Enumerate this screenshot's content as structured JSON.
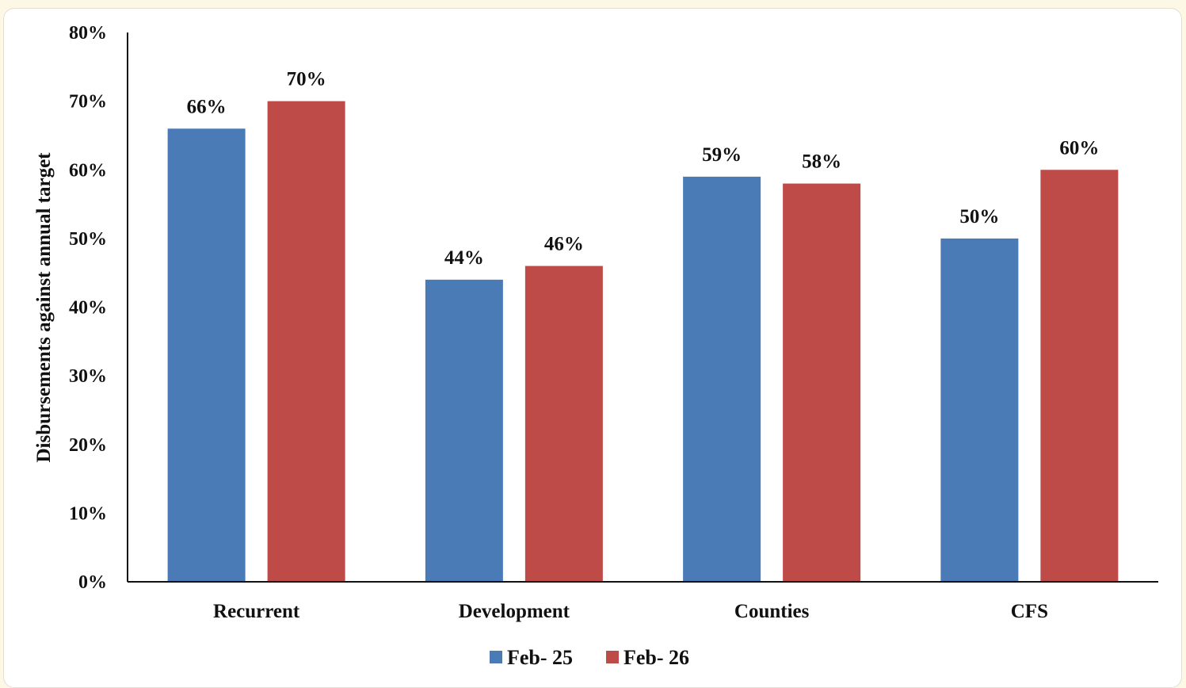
{
  "chart_data": {
    "type": "bar",
    "title": "",
    "xlabel": "",
    "ylabel": "Disbursements against annual target",
    "categories": [
      "Recurrent",
      "Development",
      "Counties",
      "CFS"
    ],
    "series": [
      {
        "name": "Feb- 25",
        "color": "#4a7bb7",
        "values": [
          66,
          44,
          59,
          50
        ],
        "labels": [
          "66%",
          "44%",
          "59%",
          "50%"
        ]
      },
      {
        "name": "Feb- 26",
        "color": "#be4b48",
        "values": [
          70,
          46,
          58,
          60
        ],
        "labels": [
          "70%",
          "46%",
          "58%",
          "60%"
        ]
      }
    ],
    "ylim": [
      0,
      80
    ],
    "yticks": [
      "0%",
      "10%",
      "20%",
      "30%",
      "40%",
      "50%",
      "60%",
      "70%",
      "80%"
    ],
    "grid": false,
    "legend_position": "bottom"
  }
}
